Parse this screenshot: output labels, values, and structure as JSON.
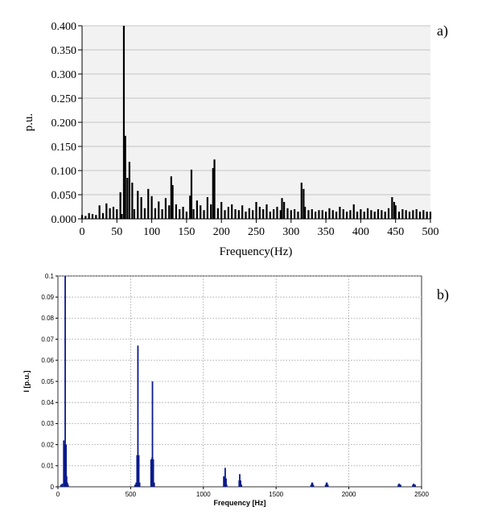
{
  "chart_data": [
    {
      "type": "bar",
      "panel_label": "a)",
      "xlabel": "Frequency(Hz)",
      "ylabel": "p.u.",
      "xlim": [
        0,
        500
      ],
      "ylim": [
        0,
        0.4
      ],
      "xticks": [
        "0",
        "50",
        "100",
        "150",
        "200",
        "250",
        "300",
        "350",
        "400",
        "450",
        "500"
      ],
      "yticks": [
        "0.000",
        "0.050",
        "0.100",
        "0.150",
        "0.200",
        "0.250",
        "0.300",
        "0.350",
        "0.400"
      ],
      "grid": "horizontal",
      "colors": {
        "bar": "#000000",
        "plot_bg": "#f2f2f2",
        "grid": "#b4b4b4"
      },
      "x": [
        0,
        5,
        10,
        15,
        20,
        25,
        30,
        35,
        40,
        45,
        50,
        55,
        57,
        60,
        62,
        65,
        68,
        72,
        75,
        80,
        85,
        90,
        95,
        100,
        105,
        110,
        115,
        120,
        125,
        128,
        130,
        135,
        140,
        145,
        150,
        155,
        157,
        160,
        165,
        170,
        175,
        180,
        185,
        188,
        190,
        195,
        200,
        205,
        210,
        215,
        220,
        225,
        230,
        235,
        240,
        245,
        250,
        255,
        260,
        265,
        270,
        275,
        280,
        285,
        287,
        290,
        295,
        300,
        305,
        310,
        315,
        318,
        320,
        325,
        330,
        335,
        340,
        345,
        350,
        355,
        360,
        365,
        370,
        375,
        380,
        385,
        390,
        395,
        400,
        405,
        410,
        415,
        420,
        425,
        430,
        435,
        440,
        445,
        448,
        450,
        455,
        460,
        465,
        470,
        475,
        480,
        485,
        490,
        495,
        500
      ],
      "values": [
        0.008,
        0.006,
        0.012,
        0.01,
        0.008,
        0.028,
        0.012,
        0.032,
        0.022,
        0.025,
        0.02,
        0.055,
        0.01,
        0.4,
        0.172,
        0.085,
        0.118,
        0.075,
        0.02,
        0.058,
        0.045,
        0.022,
        0.062,
        0.047,
        0.022,
        0.036,
        0.02,
        0.043,
        0.028,
        0.088,
        0.07,
        0.03,
        0.02,
        0.025,
        0.015,
        0.048,
        0.102,
        0.02,
        0.038,
        0.028,
        0.018,
        0.045,
        0.03,
        0.105,
        0.123,
        0.022,
        0.035,
        0.018,
        0.025,
        0.03,
        0.02,
        0.018,
        0.028,
        0.015,
        0.022,
        0.018,
        0.035,
        0.025,
        0.02,
        0.03,
        0.015,
        0.02,
        0.025,
        0.018,
        0.043,
        0.035,
        0.022,
        0.018,
        0.02,
        0.015,
        0.075,
        0.062,
        0.025,
        0.018,
        0.02,
        0.015,
        0.018,
        0.018,
        0.015,
        0.022,
        0.018,
        0.015,
        0.025,
        0.02,
        0.015,
        0.018,
        0.03,
        0.015,
        0.02,
        0.015,
        0.022,
        0.018,
        0.015,
        0.02,
        0.018,
        0.015,
        0.022,
        0.045,
        0.035,
        0.028,
        0.015,
        0.02,
        0.018,
        0.015,
        0.018,
        0.02,
        0.015,
        0.018,
        0.015,
        0.015
      ]
    },
    {
      "type": "bar",
      "panel_label": "b)",
      "xlabel": "Frequency [Hz]",
      "ylabel": "I [p.u.]",
      "xlim": [
        0,
        2500
      ],
      "ylim": [
        0,
        0.1
      ],
      "xticks": [
        "0",
        "500",
        "1000",
        "1500",
        "2000",
        "2500"
      ],
      "yticks": [
        "0",
        "0.01",
        "0.02",
        "0.03",
        "0.04",
        "0.05",
        "0.06",
        "0.07",
        "0.08",
        "0.09",
        "0.1"
      ],
      "grid": "dotted",
      "colors": {
        "bar": "#0a1a8c",
        "plot_bg": "#ffffff",
        "grid": "#9a9a9a"
      },
      "x": [
        20,
        30,
        40,
        44,
        48,
        50,
        52,
        56,
        60,
        65,
        70,
        530,
        538,
        544,
        550,
        556,
        562,
        640,
        644,
        648,
        650,
        652,
        656,
        662,
        1140,
        1146,
        1150,
        1156,
        1160,
        1246,
        1250,
        1256,
        1262,
        1740,
        1746,
        1750,
        1756,
        1840,
        1846,
        1850,
        1856,
        2340,
        2346,
        2350,
        2356,
        2440,
        2446,
        2450,
        2456
      ],
      "values": [
        0.001,
        0.0015,
        0.022,
        0.02,
        0.019,
        0.1,
        0.02,
        0.02,
        0.005,
        0.002,
        0.001,
        0.001,
        0.002,
        0.015,
        0.067,
        0.015,
        0.002,
        0.013,
        0.013,
        0.014,
        0.05,
        0.013,
        0.013,
        0.002,
        0.005,
        0.004,
        0.009,
        0.004,
        0.001,
        0.003,
        0.006,
        0.003,
        0.001,
        0.001,
        0.002,
        0.002,
        0.001,
        0.001,
        0.002,
        0.002,
        0.001,
        0.001,
        0.0015,
        0.001,
        0.001,
        0.001,
        0.0015,
        0.001,
        0.001
      ]
    }
  ]
}
